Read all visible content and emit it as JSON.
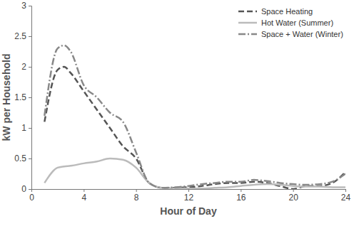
{
  "chart_data": {
    "type": "line",
    "x_label": "Hour of Day",
    "y_label": "kW per Household",
    "x": [
      1,
      2,
      2.5,
      3,
      4,
      5,
      6,
      7,
      8,
      9,
      10,
      11,
      12,
      13,
      14,
      15,
      16,
      17,
      18,
      19,
      20,
      21,
      22,
      23,
      24
    ],
    "series": [
      {
        "name": "Space Heating",
        "color": "#555555",
        "line_style": "dashed",
        "values": [
          1.1,
          1.95,
          2.0,
          1.9,
          1.6,
          1.3,
          1.0,
          0.7,
          0.5,
          0.1,
          0.02,
          0.02,
          0.03,
          0.05,
          0.08,
          0.1,
          0.1,
          0.12,
          0.1,
          0.05,
          0.0,
          0.05,
          0.05,
          0.1,
          0.28
        ]
      },
      {
        "name": "Hot Water (Summer)",
        "color": "#bbbbbb",
        "line_style": "solid",
        "values": [
          0.1,
          0.35,
          0.37,
          0.38,
          0.42,
          0.45,
          0.5,
          0.48,
          0.35,
          0.1,
          0.02,
          0.01,
          0.01,
          0.01,
          0.02,
          0.03,
          0.05,
          0.07,
          0.08,
          0.07,
          0.05,
          0.04,
          0.04,
          0.03,
          0.03
        ]
      },
      {
        "name": "Space + Water (Winter)",
        "color": "#888888",
        "line_style": "dashdot",
        "values": [
          1.2,
          2.3,
          2.35,
          2.25,
          1.7,
          1.5,
          1.25,
          1.1,
          0.6,
          0.1,
          0.02,
          0.03,
          0.05,
          0.08,
          0.1,
          0.12,
          0.12,
          0.15,
          0.13,
          0.1,
          0.08,
          0.07,
          0.08,
          0.12,
          0.25
        ]
      }
    ],
    "xlim": [
      0,
      24
    ],
    "xticks": [
      0,
      4,
      8,
      12,
      16,
      20,
      24
    ],
    "ylim": [
      0,
      3
    ],
    "yticks": [
      0,
      0.5,
      1,
      1.5,
      2,
      2.5,
      3
    ],
    "grid": false,
    "legend": "top-right"
  }
}
